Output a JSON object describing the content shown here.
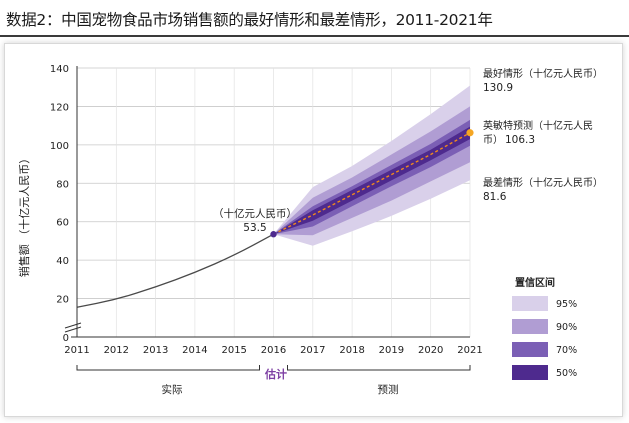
{
  "title": "数据2：中国宠物食品市场销售额的最好情形和最差情形，2011-2021年",
  "chart_data": {
    "type": "area",
    "ylabel": "销售额 （十亿元人民币）",
    "ylim": [
      0,
      140
    ],
    "yticks": [
      0,
      20,
      40,
      60,
      80,
      100,
      120,
      140
    ],
    "xlim": [
      2011,
      2021
    ],
    "xticks": [
      2011,
      2012,
      2013,
      2014,
      2015,
      2016,
      2017,
      2018,
      2019,
      2020,
      2021
    ],
    "historical": {
      "x": [
        2011,
        2012,
        2013,
        2014,
        2015,
        2016
      ],
      "y": [
        15.5,
        19.5,
        26,
        33.5,
        42.5,
        53.5
      ]
    },
    "forecast": {
      "x": [
        2016,
        2017,
        2018,
        2019,
        2020,
        2021
      ],
      "y": [
        53.5,
        63.5,
        74,
        84.5,
        95,
        106.3
      ]
    },
    "bands": [
      {
        "name": "95%",
        "color": "#d9d0ea",
        "upper": [
          53.5,
          78,
          89,
          102,
          116,
          130.9
        ],
        "lower": [
          53.5,
          47.5,
          55,
          63,
          72,
          81.6
        ]
      },
      {
        "name": "90%",
        "color": "#b09dd3",
        "upper": [
          53.5,
          72.5,
          83,
          95,
          107,
          120
        ],
        "lower": [
          53.5,
          53,
          62,
          71,
          81,
          91
        ]
      },
      {
        "name": "70%",
        "color": "#7b5fb5",
        "upper": [
          53.5,
          68,
          78.5,
          89.5,
          100.5,
          113
        ],
        "lower": [
          53.5,
          57.5,
          68,
          78.5,
          88.5,
          99.5
        ]
      },
      {
        "name": "50%",
        "color": "#4e2a8e",
        "upper": [
          53.5,
          66,
          76.5,
          87,
          97.5,
          109.5
        ],
        "lower": [
          53.5,
          60.5,
          71,
          81.5,
          92,
          103
        ]
      }
    ],
    "point_2016": {
      "label": "（十亿元人民币）",
      "value": "53.5"
    },
    "annotations": {
      "best": {
        "label": "最好情形（十亿元人民币）",
        "value": "130.9"
      },
      "expected": {
        "label1": "英敏特预测（十亿元人民",
        "label2": "币）",
        "value": "106.3"
      },
      "worst": {
        "label": "最差情形（十亿元人民币）",
        "value": "81.6"
      }
    },
    "legend": {
      "title": "置信区间",
      "position": "bottom-right",
      "items": [
        "95%",
        "90%",
        "70%",
        "50%"
      ]
    },
    "periods": {
      "actual": "实际",
      "estimate": "估计",
      "forecast": "预测"
    }
  },
  "colors": {
    "historical_line": "#4a4a4a",
    "forecast_line": "#f0891e",
    "point_2016": "#4e2a8e",
    "point_2021": "#f5a623",
    "estimate_text": "#7d3fa3",
    "axis": "#333333",
    "grid": "#c8c8c8"
  }
}
